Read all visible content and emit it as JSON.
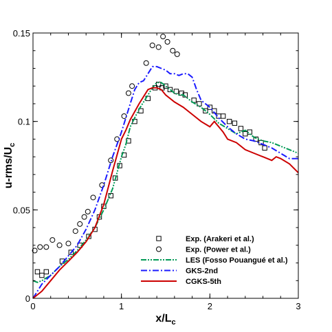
{
  "chart_data": {
    "type": "line",
    "xlabel": "x/L",
    "xlabel_sub": "c",
    "ylabel": "u-rms/U",
    "ylabel_sub": "c",
    "xlim": [
      0,
      3
    ],
    "ylim": [
      0,
      0.15
    ],
    "x_ticks": [
      0,
      1,
      2,
      3
    ],
    "x_tick_labels": [
      "0",
      "1",
      "2",
      "3"
    ],
    "y_ticks": [
      0,
      0.05,
      0.1,
      0.15
    ],
    "y_tick_labels": [
      "0",
      "0.05",
      "0.1",
      "0.15"
    ],
    "grid": false,
    "legend_position": "bottom-right",
    "series": [
      {
        "name": "Exp. (Arakeri et al.)",
        "style": "scatter",
        "marker": "square",
        "color": "#000000",
        "points": [
          [
            0.05,
            0.015
          ],
          [
            0.1,
            0.013
          ],
          [
            0.15,
            0.015
          ],
          [
            0.33,
            0.021
          ],
          [
            0.43,
            0.026
          ],
          [
            0.53,
            0.03
          ],
          [
            0.63,
            0.035
          ],
          [
            0.7,
            0.039
          ],
          [
            0.75,
            0.046
          ],
          [
            0.8,
            0.052
          ],
          [
            0.88,
            0.058
          ],
          [
            0.93,
            0.068
          ],
          [
            0.98,
            0.075
          ],
          [
            1.03,
            0.081
          ],
          [
            1.08,
            0.089
          ],
          [
            1.15,
            0.1
          ],
          [
            1.22,
            0.106
          ],
          [
            1.3,
            0.113
          ],
          [
            1.38,
            0.119
          ],
          [
            1.42,
            0.121
          ],
          [
            1.46,
            0.119
          ],
          [
            1.5,
            0.12
          ],
          [
            1.55,
            0.118
          ],
          [
            1.62,
            0.117
          ],
          [
            1.68,
            0.116
          ],
          [
            1.72,
            0.115
          ],
          [
            1.82,
            0.112
          ],
          [
            1.88,
            0.11
          ],
          [
            1.95,
            0.106
          ],
          [
            2.0,
            0.108
          ],
          [
            2.05,
            0.106
          ],
          [
            2.1,
            0.103
          ],
          [
            2.15,
            0.103
          ],
          [
            2.22,
            0.1
          ],
          [
            2.28,
            0.099
          ],
          [
            2.35,
            0.096
          ],
          [
            2.4,
            0.093
          ],
          [
            2.45,
            0.094
          ],
          [
            2.52,
            0.09
          ],
          [
            2.58,
            0.088
          ],
          [
            2.62,
            0.085
          ]
        ]
      },
      {
        "name": "Exp. (Power et al.)",
        "style": "scatter",
        "marker": "circle",
        "color": "#000000",
        "points": [
          [
            0.02,
            0.027
          ],
          [
            0.08,
            0.029
          ],
          [
            0.15,
            0.029
          ],
          [
            0.22,
            0.033
          ],
          [
            0.3,
            0.03
          ],
          [
            0.4,
            0.031
          ],
          [
            0.48,
            0.038
          ],
          [
            0.53,
            0.042
          ],
          [
            0.58,
            0.046
          ],
          [
            0.62,
            0.049
          ],
          [
            0.68,
            0.057
          ],
          [
            0.78,
            0.064
          ],
          [
            0.88,
            0.078
          ],
          [
            0.95,
            0.09
          ],
          [
            1.03,
            0.103
          ],
          [
            1.08,
            0.116
          ],
          [
            1.12,
            0.12
          ],
          [
            1.28,
            0.133
          ],
          [
            1.35,
            0.143
          ],
          [
            1.42,
            0.142
          ],
          [
            1.47,
            0.148
          ],
          [
            1.52,
            0.145
          ],
          [
            1.58,
            0.14
          ],
          [
            1.63,
            0.138
          ]
        ]
      },
      {
        "name": "LES (Fosso Pouangué et al.)",
        "style": "line",
        "dash": "dashdotdot",
        "color": "#009a55",
        "points": [
          [
            0.0,
            0.01
          ],
          [
            0.05,
            0.009
          ],
          [
            0.1,
            0.01
          ],
          [
            0.2,
            0.013
          ],
          [
            0.3,
            0.018
          ],
          [
            0.4,
            0.022
          ],
          [
            0.5,
            0.027
          ],
          [
            0.6,
            0.033
          ],
          [
            0.7,
            0.04
          ],
          [
            0.8,
            0.05
          ],
          [
            0.9,
            0.062
          ],
          [
            1.0,
            0.08
          ],
          [
            1.05,
            0.087
          ],
          [
            1.1,
            0.097
          ],
          [
            1.2,
            0.107
          ],
          [
            1.3,
            0.115
          ],
          [
            1.35,
            0.119
          ],
          [
            1.4,
            0.122
          ],
          [
            1.45,
            0.122
          ],
          [
            1.5,
            0.12
          ],
          [
            1.55,
            0.118
          ],
          [
            1.6,
            0.116
          ],
          [
            1.65,
            0.115
          ],
          [
            1.7,
            0.115
          ],
          [
            1.8,
            0.111
          ],
          [
            1.9,
            0.108
          ],
          [
            2.0,
            0.104
          ],
          [
            2.1,
            0.099
          ],
          [
            2.2,
            0.096
          ],
          [
            2.3,
            0.093
          ],
          [
            2.4,
            0.095
          ],
          [
            2.5,
            0.091
          ],
          [
            2.6,
            0.089
          ],
          [
            2.7,
            0.088
          ],
          [
            2.8,
            0.086
          ],
          [
            2.9,
            0.084
          ],
          [
            3.0,
            0.082
          ]
        ]
      },
      {
        "name": "GKS-2nd",
        "style": "line",
        "dash": "dashdot",
        "color": "#1a1aff",
        "points": [
          [
            0.0,
            0.0
          ],
          [
            0.05,
            0.004
          ],
          [
            0.1,
            0.008
          ],
          [
            0.2,
            0.013
          ],
          [
            0.3,
            0.018
          ],
          [
            0.4,
            0.024
          ],
          [
            0.5,
            0.03
          ],
          [
            0.6,
            0.039
          ],
          [
            0.7,
            0.05
          ],
          [
            0.8,
            0.064
          ],
          [
            0.9,
            0.08
          ],
          [
            1.0,
            0.094
          ],
          [
            1.05,
            0.102
          ],
          [
            1.1,
            0.11
          ],
          [
            1.15,
            0.118
          ],
          [
            1.2,
            0.122
          ],
          [
            1.25,
            0.123
          ],
          [
            1.3,
            0.127
          ],
          [
            1.35,
            0.131
          ],
          [
            1.4,
            0.131
          ],
          [
            1.45,
            0.13
          ],
          [
            1.5,
            0.129
          ],
          [
            1.55,
            0.127
          ],
          [
            1.6,
            0.127
          ],
          [
            1.65,
            0.126
          ],
          [
            1.7,
            0.127
          ],
          [
            1.75,
            0.127
          ],
          [
            1.8,
            0.125
          ],
          [
            1.85,
            0.118
          ],
          [
            1.9,
            0.112
          ],
          [
            2.0,
            0.108
          ],
          [
            2.1,
            0.102
          ],
          [
            2.2,
            0.097
          ],
          [
            2.3,
            0.093
          ],
          [
            2.4,
            0.09
          ],
          [
            2.5,
            0.089
          ],
          [
            2.6,
            0.087
          ],
          [
            2.7,
            0.085
          ],
          [
            2.8,
            0.082
          ],
          [
            2.9,
            0.079
          ],
          [
            3.0,
            0.079
          ]
        ]
      },
      {
        "name": "CGKS-5th",
        "style": "line",
        "dash": "solid",
        "color": "#cc0000",
        "points": [
          [
            0.0,
            0.0
          ],
          [
            0.05,
            0.002
          ],
          [
            0.1,
            0.004
          ],
          [
            0.2,
            0.01
          ],
          [
            0.3,
            0.016
          ],
          [
            0.4,
            0.021
          ],
          [
            0.5,
            0.026
          ],
          [
            0.6,
            0.032
          ],
          [
            0.7,
            0.04
          ],
          [
            0.8,
            0.053
          ],
          [
            0.9,
            0.072
          ],
          [
            1.0,
            0.09
          ],
          [
            1.05,
            0.095
          ],
          [
            1.1,
            0.101
          ],
          [
            1.2,
            0.11
          ],
          [
            1.3,
            0.118
          ],
          [
            1.35,
            0.119
          ],
          [
            1.4,
            0.119
          ],
          [
            1.45,
            0.118
          ],
          [
            1.5,
            0.115
          ],
          [
            1.6,
            0.111
          ],
          [
            1.7,
            0.108
          ],
          [
            1.8,
            0.104
          ],
          [
            1.9,
            0.1
          ],
          [
            2.0,
            0.097
          ],
          [
            2.05,
            0.1
          ],
          [
            2.1,
            0.097
          ],
          [
            2.15,
            0.094
          ],
          [
            2.2,
            0.09
          ],
          [
            2.3,
            0.088
          ],
          [
            2.4,
            0.084
          ],
          [
            2.5,
            0.082
          ],
          [
            2.6,
            0.08
          ],
          [
            2.7,
            0.078
          ],
          [
            2.75,
            0.08
          ],
          [
            2.8,
            0.079
          ],
          [
            2.9,
            0.076
          ],
          [
            3.0,
            0.071
          ]
        ]
      }
    ]
  }
}
